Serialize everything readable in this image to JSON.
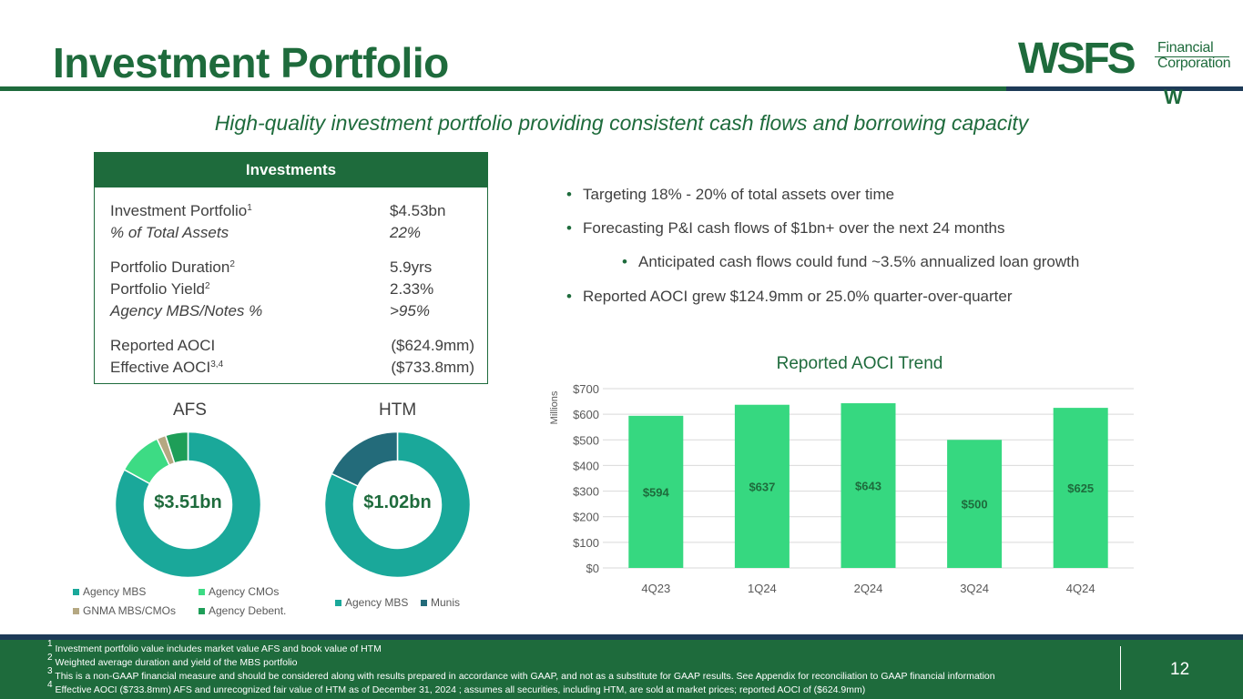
{
  "header": {
    "title": "Investment Portfolio",
    "subtitle": "High-quality investment portfolio providing consistent cash flows and borrowing capacity",
    "logo": {
      "brand": "WSFS",
      "line1": "Financial",
      "line2": "Corporation",
      "mark": "W"
    }
  },
  "investments": {
    "heading": "Investments",
    "rows": [
      {
        "label": "Investment Portfolio",
        "sup": "1",
        "value": "$4.53bn"
      },
      {
        "label": "% of Total Assets",
        "sup": "",
        "value": "22%"
      },
      {
        "label": "Portfolio Duration",
        "sup": "2",
        "value": "5.9yrs"
      },
      {
        "label": "Portfolio Yield",
        "sup": "2",
        "value": "2.33%"
      },
      {
        "label": "Agency MBS/Notes %",
        "sup": "",
        "value": ">95%"
      },
      {
        "label": "Reported AOCI",
        "sup": "",
        "value": "($624.9mm)"
      },
      {
        "label": "Effective AOCI",
        "sup": "3,4",
        "value": "($733.8mm)"
      }
    ]
  },
  "bullets": [
    "Targeting 18% - 20% of total assets over time",
    "Forecasting P&I cash flows of $1bn+ over the next 24 months",
    "Anticipated cash flows could fund  ~3.5% annualized loan growth",
    "Reported AOCI grew $124.9mm or 25.0% quarter-over-quarter"
  ],
  "chart_data": [
    {
      "type": "pie",
      "title": "AFS",
      "center_label": "$3.51bn",
      "categories": [
        "Agency MBS",
        "Agency CMOs",
        "GNMA MBS/CMOs",
        "Agency Debent."
      ],
      "values": [
        83,
        10,
        2,
        5
      ],
      "colors": [
        "#1aa89a",
        "#3ddb84",
        "#b5a882",
        "#1e9e58"
      ]
    },
    {
      "type": "pie",
      "title": "HTM",
      "center_label": "$1.02bn",
      "categories": [
        "Agency MBS",
        "Munis"
      ],
      "values": [
        82,
        18
      ],
      "colors": [
        "#1aa89a",
        "#236b7a"
      ]
    },
    {
      "type": "bar",
      "title": "Reported AOCI Trend",
      "ylabel": "Millions",
      "categories": [
        "4Q23",
        "1Q24",
        "2Q24",
        "3Q24",
        "4Q24"
      ],
      "values": [
        594,
        637,
        643,
        500,
        625
      ],
      "data_labels": [
        "$594",
        "$637",
        "$643",
        "$500",
        "$625"
      ],
      "ylim": [
        0,
        700
      ],
      "yticks": [
        "$0",
        "$100",
        "$200",
        "$300",
        "$400",
        "$500",
        "$600",
        "$700"
      ],
      "grid": true,
      "color": "#36d880"
    }
  ],
  "footnotes": [
    {
      "num": "1",
      "text": "Investment portfolio value includes market value AFS and book value of HTM"
    },
    {
      "num": "2",
      "text": "Weighted average duration and yield of the MBS portfolio"
    },
    {
      "num": "3",
      "text": "This is a non-GAAP financial measure and should be considered along with results prepared in accordance with GAAP, and not as a substitute for GAAP results.  See Appendix for reconciliation to GAAP financial information"
    },
    {
      "num": "4",
      "text": "Effective AOCI ($733.8mm) AFS and unrecognized fair value of HTM as of December 31, 2024 ; assumes all securities, including HTM, are sold at market prices; reported AOCI of ($624.9mm)"
    }
  ],
  "page_number": "12"
}
